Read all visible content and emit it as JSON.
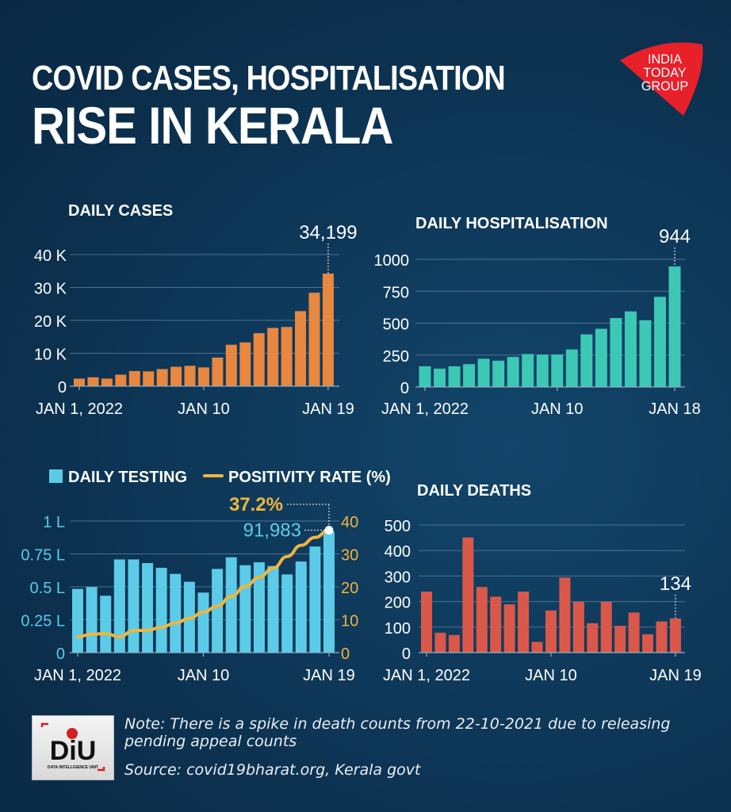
{
  "header": {
    "title_line1": "COVID CASES, HOSPITALISATION",
    "title_line2": "RISE IN KERALA",
    "publisher_logo": [
      "INDIA",
      "TODAY",
      "GROUP"
    ],
    "logo_color": "#e8202a"
  },
  "footer": {
    "unit_logo_text": "DiU",
    "unit_logo_subtext": "DATA INTELLIGENCE UNIT",
    "note": "Note: There is a spike in death counts from 22-10-2021 due to releasing pending appeal counts",
    "source": "Source: covid19bharat.org, Kerala govt"
  },
  "chart_data": [
    {
      "id": "daily-cases",
      "type": "bar",
      "title": "DAILY CASES",
      "color": "#e8873f",
      "x": [
        "Jan 1",
        "Jan 2",
        "Jan 3",
        "Jan 4",
        "Jan 5",
        "Jan 6",
        "Jan 7",
        "Jan 8",
        "Jan 9",
        "Jan 10",
        "Jan 11",
        "Jan 12",
        "Jan 13",
        "Jan 14",
        "Jan 15",
        "Jan 16",
        "Jan 17",
        "Jan 18",
        "Jan 19"
      ],
      "values": [
        2300,
        2700,
        2300,
        3500,
        4600,
        4500,
        5200,
        5900,
        6200,
        5700,
        8700,
        12600,
        13300,
        16100,
        17700,
        18000,
        22800,
        28400,
        34199
      ],
      "ylim": [
        0,
        40000
      ],
      "yticks": [
        0,
        10000,
        20000,
        30000,
        40000
      ],
      "ytick_labels": [
        "0",
        "10 K",
        "20 K",
        "30 K",
        "40 K"
      ],
      "xtick_labels": [
        {
          "index": 0,
          "label": "JAN 1, 2022"
        },
        {
          "index": 9,
          "label": "JAN 10"
        },
        {
          "index": 18,
          "label": "JAN 19"
        }
      ],
      "annotation": {
        "index": 18,
        "label": "34,199"
      },
      "grid": true
    },
    {
      "id": "daily-hospitalisation",
      "type": "bar",
      "title": "DAILY HOSPITALISATION",
      "color": "#3cc8b4",
      "x": [
        "Jan 1",
        "Jan 2",
        "Jan 3",
        "Jan 4",
        "Jan 5",
        "Jan 6",
        "Jan 7",
        "Jan 8",
        "Jan 9",
        "Jan 10",
        "Jan 11",
        "Jan 12",
        "Jan 13",
        "Jan 14",
        "Jan 15",
        "Jan 16",
        "Jan 17",
        "Jan 18"
      ],
      "values": [
        162,
        144,
        162,
        179,
        221,
        206,
        235,
        258,
        254,
        254,
        294,
        412,
        456,
        540,
        592,
        523,
        706,
        944
      ],
      "ylim": [
        0,
        1000
      ],
      "yticks": [
        0,
        250,
        500,
        750,
        1000
      ],
      "ytick_labels": [
        "0",
        "250",
        "500",
        "750",
        "1000"
      ],
      "xtick_labels": [
        {
          "index": 0,
          "label": "JAN 1, 2022"
        },
        {
          "index": 9,
          "label": "JAN 10"
        },
        {
          "index": 17,
          "label": "JAN 18"
        }
      ],
      "annotation": {
        "index": 17,
        "label": "944"
      },
      "grid": true
    },
    {
      "id": "testing-positivity",
      "type": "bar",
      "title": "",
      "legend": [
        {
          "label": "DAILY TESTING",
          "color": "#5ccbe8",
          "kind": "bar"
        },
        {
          "label": "POSITIVITY RATE (%)",
          "color": "#f0b53c",
          "kind": "line"
        }
      ],
      "legend_position": "top",
      "x": [
        "Jan 1",
        "Jan 2",
        "Jan 3",
        "Jan 4",
        "Jan 5",
        "Jan 6",
        "Jan 7",
        "Jan 8",
        "Jan 9",
        "Jan 10",
        "Jan 11",
        "Jan 12",
        "Jan 13",
        "Jan 14",
        "Jan 15",
        "Jan 16",
        "Jan 17",
        "Jan 18",
        "Jan 19"
      ],
      "series": [
        {
          "name": "Daily testing (lakh)",
          "kind": "bar",
          "axis": "left",
          "color": "#5ccbe8",
          "values": [
            0.484,
            0.498,
            0.432,
            0.708,
            0.708,
            0.68,
            0.644,
            0.598,
            0.538,
            0.456,
            0.636,
            0.724,
            0.664,
            0.686,
            0.658,
            0.594,
            0.692,
            0.806,
            0.91983
          ]
        },
        {
          "name": "Positivity rate (%)",
          "kind": "line",
          "axis": "right",
          "color": "#f0b53c",
          "values": [
            4.8,
            5.6,
            5.8,
            4.8,
            6.7,
            6.8,
            7.7,
            9.0,
            10.4,
            12.3,
            14.1,
            17.1,
            20.1,
            22.9,
            25.7,
            29.2,
            32.6,
            35.0,
            37.2
          ]
        }
      ],
      "ylim_left": [
        0,
        1
      ],
      "yticks_left": [
        0,
        0.25,
        0.5,
        0.75,
        1
      ],
      "ytick_labels_left": [
        "0",
        "0.25 L",
        "0.5 L",
        "0.75 L",
        "1 L"
      ],
      "ylim_right": [
        0,
        40
      ],
      "yticks_right": [
        0,
        10,
        20,
        30,
        40
      ],
      "ytick_labels_right": [
        "0",
        "10",
        "20",
        "30",
        "40"
      ],
      "xtick_labels": [
        {
          "index": 0,
          "label": "JAN 1, 2022"
        },
        {
          "index": 9,
          "label": "JAN 10"
        },
        {
          "index": 18,
          "label": "JAN 19"
        }
      ],
      "annotations": [
        {
          "index": 18,
          "label": "37.2%",
          "series": "Positivity rate (%)",
          "color": "#f0b53c"
        },
        {
          "index": 18,
          "label": "91,983",
          "series": "Daily testing (lakh)",
          "color": "#5ccbe8"
        }
      ],
      "grid": true
    },
    {
      "id": "daily-deaths",
      "type": "bar",
      "title": "DAILY DEATHS",
      "color": "#d9584a",
      "x": [
        "Jan 1",
        "Jan 2",
        "Jan 3",
        "Jan 4",
        "Jan 5",
        "Jan 6",
        "Jan 7",
        "Jan 8",
        "Jan 9",
        "Jan 10",
        "Jan 11",
        "Jan 12",
        "Jan 13",
        "Jan 14",
        "Jan 15",
        "Jan 16",
        "Jan 17",
        "Jan 18",
        "Jan 19"
      ],
      "values": [
        239,
        78,
        69,
        451,
        257,
        219,
        189,
        239,
        42,
        165,
        294,
        199,
        115,
        199,
        105,
        157,
        72,
        122,
        134
      ],
      "ylim": [
        0,
        500
      ],
      "yticks": [
        0,
        100,
        200,
        300,
        400,
        500
      ],
      "ytick_labels": [
        "0",
        "100",
        "200",
        "300",
        "400",
        "500"
      ],
      "xtick_labels": [
        {
          "index": 0,
          "label": "JAN 1, 2022"
        },
        {
          "index": 9,
          "label": "JAN 10"
        },
        {
          "index": 18,
          "label": "JAN 19"
        }
      ],
      "annotation": {
        "index": 18,
        "label": "134"
      },
      "grid": true
    }
  ]
}
